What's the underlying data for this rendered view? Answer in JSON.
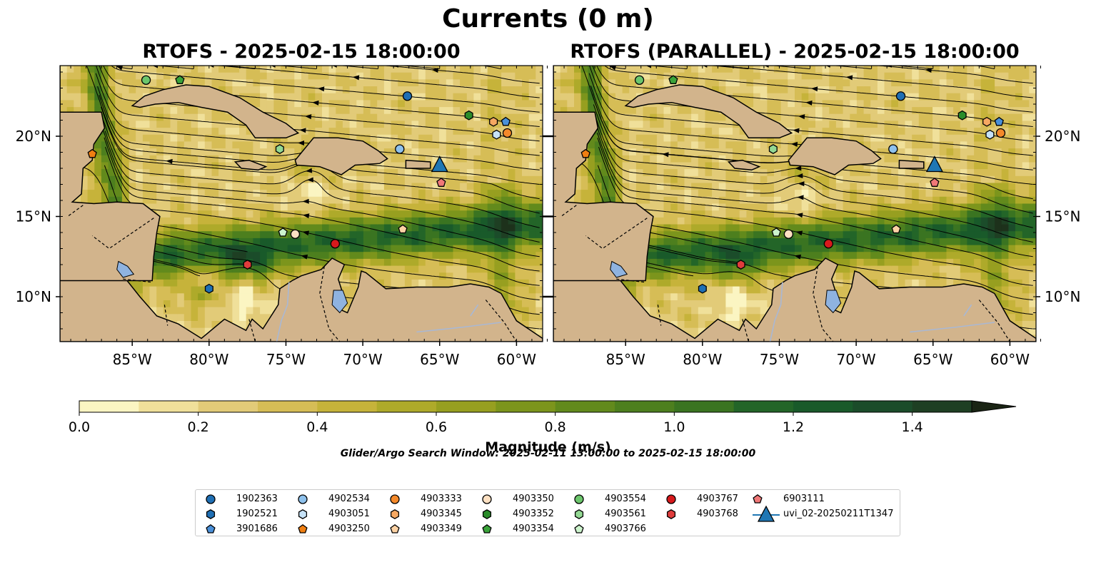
{
  "figure": {
    "title": "Currents (0 m)",
    "left_panel_title": "RTOFS - 2025-02-15 18:00:00",
    "right_panel_title": "RTOFS (PARALLEL) - 2025-02-15 18:00:00",
    "lon_labels": [
      "85°W",
      "80°W",
      "75°W",
      "70°W",
      "65°W",
      "60°W"
    ],
    "lat_labels": [
      "10°N",
      "15°N",
      "20°N"
    ],
    "map_extent": {
      "lon": [
        -89.7,
        -58.3
      ],
      "lat": [
        7.2,
        24.4
      ]
    },
    "colors": {
      "land": "#d2b48c",
      "ocean_low": "#f8f0b8",
      "ocean_mid": "#b4b03c",
      "ocean_high": "#1e5a28",
      "lakes": "#8fb3e0",
      "rivers": "#a9b8d4"
    }
  },
  "colorbar": {
    "label": "Magnitude (m/s)",
    "ticks": [
      "0.0",
      "0.2",
      "0.4",
      "0.6",
      "0.8",
      "1.0",
      "1.2",
      "1.4"
    ],
    "range": [
      0,
      1.5
    ],
    "extend": "max",
    "colors": [
      "#fbf5c2",
      "#f0e09a",
      "#e2cb78",
      "#d6bd56",
      "#c6b33a",
      "#aeaa2a",
      "#979f20",
      "#7c951c",
      "#628a1c",
      "#4d7f1e",
      "#3a7421",
      "#236528",
      "#195a2a",
      "#1b4c2a",
      "#1e3f23",
      "#1d311b",
      "#1a2414"
    ]
  },
  "search_window": "Glider/Argo Search Window: 2025-02-11 13:00:00 to 2025-02-15 18:00:00",
  "legend": {
    "columns": [
      [
        {
          "label": "1902363",
          "marker": "circle",
          "color": "#1f6fb4"
        },
        {
          "label": "1902521",
          "marker": "hexagon",
          "color": "#1f6fb4"
        },
        {
          "label": "3901686",
          "marker": "pentagon",
          "color": "#4a90d9"
        }
      ],
      [
        {
          "label": "4902534",
          "marker": "circle",
          "color": "#8ec1ec"
        },
        {
          "label": "4903051",
          "marker": "hexagon",
          "color": "#c6e2f7"
        },
        {
          "label": "4903250",
          "marker": "pentagon",
          "color": "#f07f12"
        }
      ],
      [
        {
          "label": "4903333",
          "marker": "circle",
          "color": "#f4892a"
        },
        {
          "label": "4903345",
          "marker": "hexagon",
          "color": "#f6a862"
        },
        {
          "label": "4903349",
          "marker": "pentagon",
          "color": "#fcd2a4"
        }
      ],
      [
        {
          "label": "4903350",
          "marker": "circle",
          "color": "#fde0c2"
        },
        {
          "label": "4903352",
          "marker": "hexagon",
          "color": "#2a8c2a"
        },
        {
          "label": "4903354",
          "marker": "pentagon",
          "color": "#3aa33a"
        }
      ],
      [
        {
          "label": "4903554",
          "marker": "circle",
          "color": "#6cc66c"
        },
        {
          "label": "4903561",
          "marker": "hexagon",
          "color": "#93d893"
        },
        {
          "label": "4903766",
          "marker": "pentagon",
          "color": "#cdf3cd"
        }
      ],
      [
        {
          "label": "4903767",
          "marker": "circle",
          "color": "#d7191c"
        },
        {
          "label": "4903768",
          "marker": "hexagon",
          "color": "#e03c3c"
        }
      ],
      [
        {
          "label": "6903111",
          "marker": "pentagon",
          "color": "#f07878"
        },
        {
          "label": "uvi_02-20250211T1347",
          "marker": "triangle",
          "color": "#1f77b4"
        }
      ]
    ]
  },
  "platforms": [
    {
      "id": "1902363",
      "marker": "circle",
      "color": "#1f6fb4",
      "left": [
        -67.1,
        22.5
      ],
      "right": [
        -67.1,
        22.5
      ]
    },
    {
      "id": "4902534",
      "marker": "circle",
      "color": "#8ec1ec",
      "left": [
        -67.6,
        19.2
      ],
      "right": [
        -67.6,
        19.2
      ]
    },
    {
      "id": "1902521",
      "marker": "hexagon",
      "color": "#1f6fb4",
      "left": [
        -80.0,
        10.5
      ],
      "right": [
        -80.0,
        10.5
      ]
    },
    {
      "id": "3901686",
      "marker": "pentagon",
      "color": "#4a90d9",
      "left": [
        -60.7,
        20.9
      ],
      "right": [
        -60.7,
        20.9
      ]
    },
    {
      "id": "4903051",
      "marker": "hexagon",
      "color": "#c6e2f7",
      "left": [
        -61.3,
        20.1
      ],
      "right": [
        -61.3,
        20.1
      ]
    },
    {
      "id": "4903250",
      "marker": "pentagon",
      "color": "#f07f12",
      "left": [
        -87.6,
        18.9
      ],
      "right": [
        -87.6,
        18.9
      ]
    },
    {
      "id": "4903333",
      "marker": "circle",
      "color": "#f4892a",
      "left": [
        -60.6,
        20.2
      ],
      "right": [
        -60.6,
        20.2
      ]
    },
    {
      "id": "4903345",
      "marker": "hexagon",
      "color": "#f6a862",
      "left": [
        -61.5,
        20.9
      ],
      "right": [
        -61.5,
        20.9
      ]
    },
    {
      "id": "4903349",
      "marker": "pentagon",
      "color": "#fcd2a4",
      "left": [
        -67.4,
        14.2
      ],
      "right": [
        -67.4,
        14.2
      ]
    },
    {
      "id": "4903350",
      "marker": "circle",
      "color": "#fde0c2",
      "left": [
        -74.4,
        13.9
      ],
      "right": [
        -74.4,
        13.9
      ]
    },
    {
      "id": "4903352",
      "marker": "hexagon",
      "color": "#2a8c2a",
      "left": [
        -63.1,
        21.3
      ],
      "right": [
        -63.1,
        21.3
      ]
    },
    {
      "id": "4903354",
      "marker": "pentagon",
      "color": "#3aa33a",
      "left": [
        -81.9,
        23.5
      ],
      "right": [
        -81.9,
        23.5
      ]
    },
    {
      "id": "4903554",
      "marker": "circle",
      "color": "#6cc66c",
      "left": [
        -84.1,
        23.5
      ],
      "right": [
        -84.1,
        23.5
      ]
    },
    {
      "id": "4903561",
      "marker": "hexagon",
      "color": "#93d893",
      "left": [
        -75.4,
        19.2
      ],
      "right": [
        -75.4,
        19.2
      ]
    },
    {
      "id": "4903766",
      "marker": "pentagon",
      "color": "#cdf3cd",
      "left": [
        -75.2,
        14.0
      ],
      "right": [
        -75.2,
        14.0
      ]
    },
    {
      "id": "4903767",
      "marker": "circle",
      "color": "#d7191c",
      "left": [
        -71.8,
        13.3
      ],
      "right": [
        -71.8,
        13.3
      ]
    },
    {
      "id": "4903768",
      "marker": "hexagon",
      "color": "#e03c3c",
      "left": [
        -77.5,
        12.0
      ],
      "right": [
        -77.5,
        12.0
      ]
    },
    {
      "id": "6903111",
      "marker": "pentagon",
      "color": "#f07878",
      "left": [
        -64.9,
        17.1
      ],
      "right": [
        -64.9,
        17.1
      ]
    },
    {
      "id": "uvi_02-20250211T1347",
      "marker": "triangle",
      "color": "#1f77b4",
      "left": [
        -65.0,
        18.2
      ],
      "right": [
        -64.9,
        18.2
      ]
    }
  ]
}
